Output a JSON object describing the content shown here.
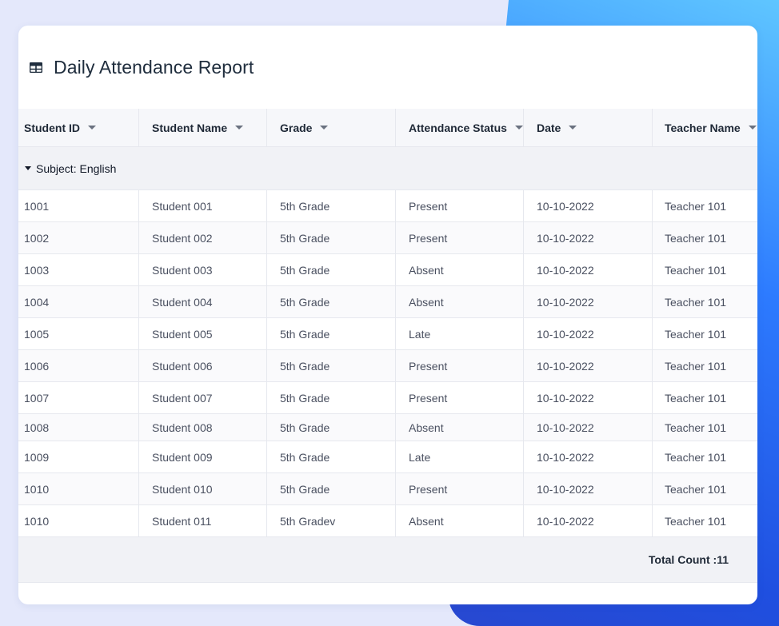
{
  "colors": {
    "background": "#e4e8fb",
    "accent_gradient_start": "#5fc6ff",
    "accent_gradient_end": "#2848d0",
    "card": "#ffffff"
  },
  "header": {
    "icon": "table-icon",
    "title": "Daily Attendance Report"
  },
  "table": {
    "columns": [
      "Student ID",
      "Student Name",
      "Grade",
      "Attendance Status",
      "Date",
      "Teacher Name"
    ],
    "group_label": "Subject: English",
    "rows": [
      [
        "1001",
        "Student 001",
        "5th Grade",
        "Present",
        "10-10-2022",
        "Teacher 101"
      ],
      [
        "1002",
        "Student 002",
        "5th Grade",
        "Present",
        "10-10-2022",
        "Teacher 101"
      ],
      [
        "1003",
        "Student 003",
        "5th Grade",
        "Absent",
        "10-10-2022",
        "Teacher 101"
      ],
      [
        "1004",
        "Student 004",
        "5th Grade",
        "Absent",
        "10-10-2022",
        "Teacher 101"
      ],
      [
        "1005",
        "Student 005",
        "5th Grade",
        "Late",
        "10-10-2022",
        "Teacher 101"
      ],
      [
        "1006",
        "Student 006",
        "5th Grade",
        "Present",
        "10-10-2022",
        "Teacher 101"
      ],
      [
        "1007",
        "Student 007",
        "5th Grade",
        "Present",
        "10-10-2022",
        "Teacher 101"
      ],
      [
        "1008",
        "Student 008",
        "5th Grade",
        "Absent",
        "10-10-2022",
        "Teacher 101"
      ],
      [
        "1009",
        "Student 009",
        "5th Grade",
        "Late",
        "10-10-2022",
        "Teacher 101"
      ],
      [
        "1010",
        "Student 010",
        "5th Grade",
        "Present",
        "10-10-2022",
        "Teacher 101"
      ],
      [
        "1010",
        "Student 011",
        "5th Gradev",
        "Absent",
        "10-10-2022",
        "Teacher 101"
      ]
    ],
    "footer": "Total Count :11"
  }
}
